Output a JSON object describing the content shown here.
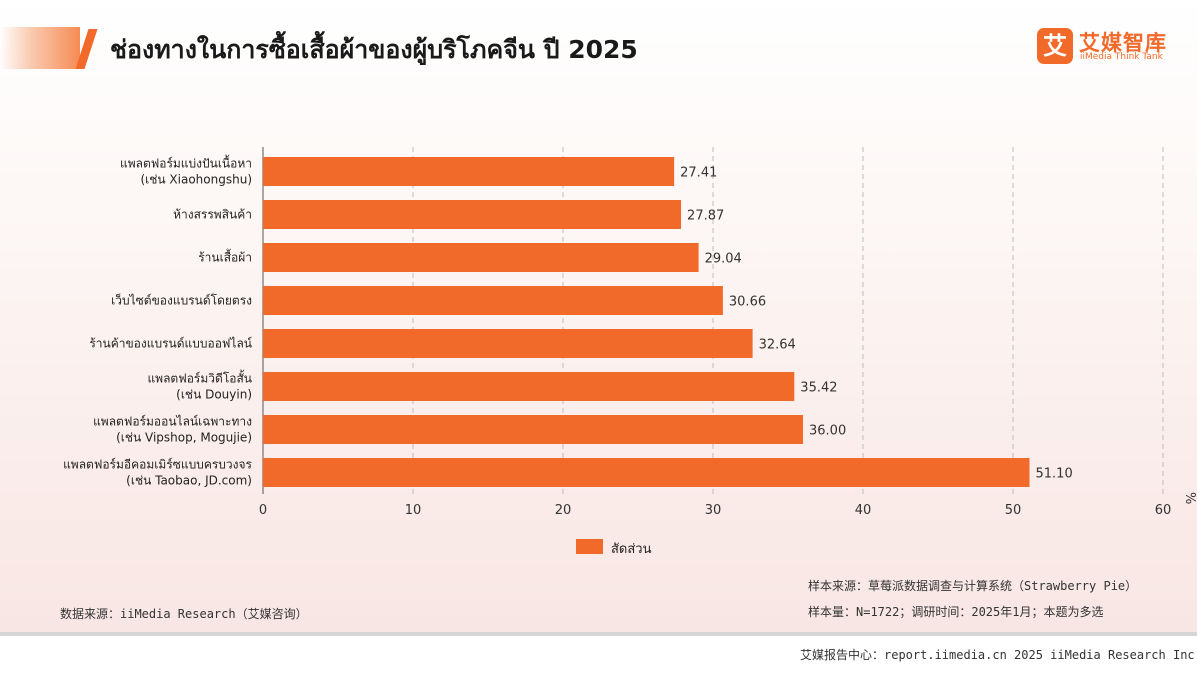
{
  "page": {
    "title": "ช่องทางในการซื้อเสื้อผ้าของผู้บริโภคจีน ปี 2025",
    "logo_mark": "艾",
    "logo_cn": "艾媒智库",
    "logo_en": "iiMedia Think Tank"
  },
  "colors": {
    "bar": "#f26a2a",
    "accent": "#f26a2a",
    "grid": "#bdbdbd"
  },
  "chart_data": {
    "type": "bar",
    "orientation": "horizontal",
    "categories": [
      [
        "แพลตฟอร์มแบ่งปันเนื้อหา",
        "(เช่น Xiaohongshu)"
      ],
      [
        "ห้างสรรพสินค้า"
      ],
      [
        "ร้านเสื้อผ้า"
      ],
      [
        "เว็บไซต์ของแบรนด์โดยตรง"
      ],
      [
        "ร้านค้าของแบรนด์แบบออฟไลน์"
      ],
      [
        "แพลตฟอร์มวิดีโอสั้น",
        "(เช่น Douyin)"
      ],
      [
        "แพลตฟอร์มออนไลน์เฉพาะทาง",
        "(เช่น Vipshop, Mogujie)"
      ],
      [
        "แพลตฟอร์มอีคอมเมิร์ซแบบครบวงจร",
        "(เช่น Taobao, JD.com)"
      ]
    ],
    "series": [
      {
        "name": "สัดส่วน",
        "values": [
          27.41,
          27.87,
          29.04,
          30.66,
          32.64,
          35.42,
          36.0,
          51.1
        ],
        "value_labels": [
          "27.41",
          "27.87",
          "29.04",
          "30.66",
          "32.64",
          "35.42",
          "36.00",
          "51.10"
        ]
      }
    ],
    "xlim": [
      0,
      60
    ],
    "xticks": [
      0,
      10,
      20,
      30,
      40,
      50,
      60
    ],
    "x_unit": "%",
    "grid": "vertical-dashed",
    "legend_position": "bottom"
  },
  "footer": {
    "data_source": "数据来源：iiMedia Research（艾媒咨询）",
    "sample_source": "样本来源：草莓派数据调查与计算系统（Strawberry Pie）",
    "sample_info": "样本量：N=1722；调研时间：2025年1月；本题为多选",
    "report_center": "艾媒报告中心：report.iimedia.cn 2025 iiMedia Research Inc"
  }
}
